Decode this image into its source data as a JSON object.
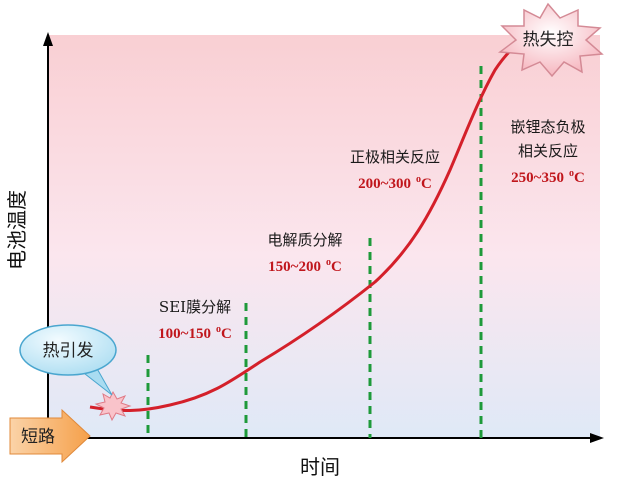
{
  "axes": {
    "y_label": "电池温度",
    "x_label": "时间"
  },
  "callouts": {
    "runaway": "热失控",
    "trigger": "热引发",
    "short_circuit": "短路"
  },
  "stages": [
    {
      "name": [
        "SEI膜分解"
      ],
      "range": "100~150",
      "degree": "o",
      "unit": "C"
    },
    {
      "name": [
        "电解质分解"
      ],
      "range": "150~200",
      "degree": "o",
      "unit": "C"
    },
    {
      "name": [
        "正极相关反应"
      ],
      "range": "200~300",
      "degree": "o",
      "unit": "C"
    },
    {
      "name": [
        "嵌锂态负极",
        "相关反应"
      ],
      "range": "250~350",
      "degree": "o",
      "unit": "C"
    }
  ]
}
